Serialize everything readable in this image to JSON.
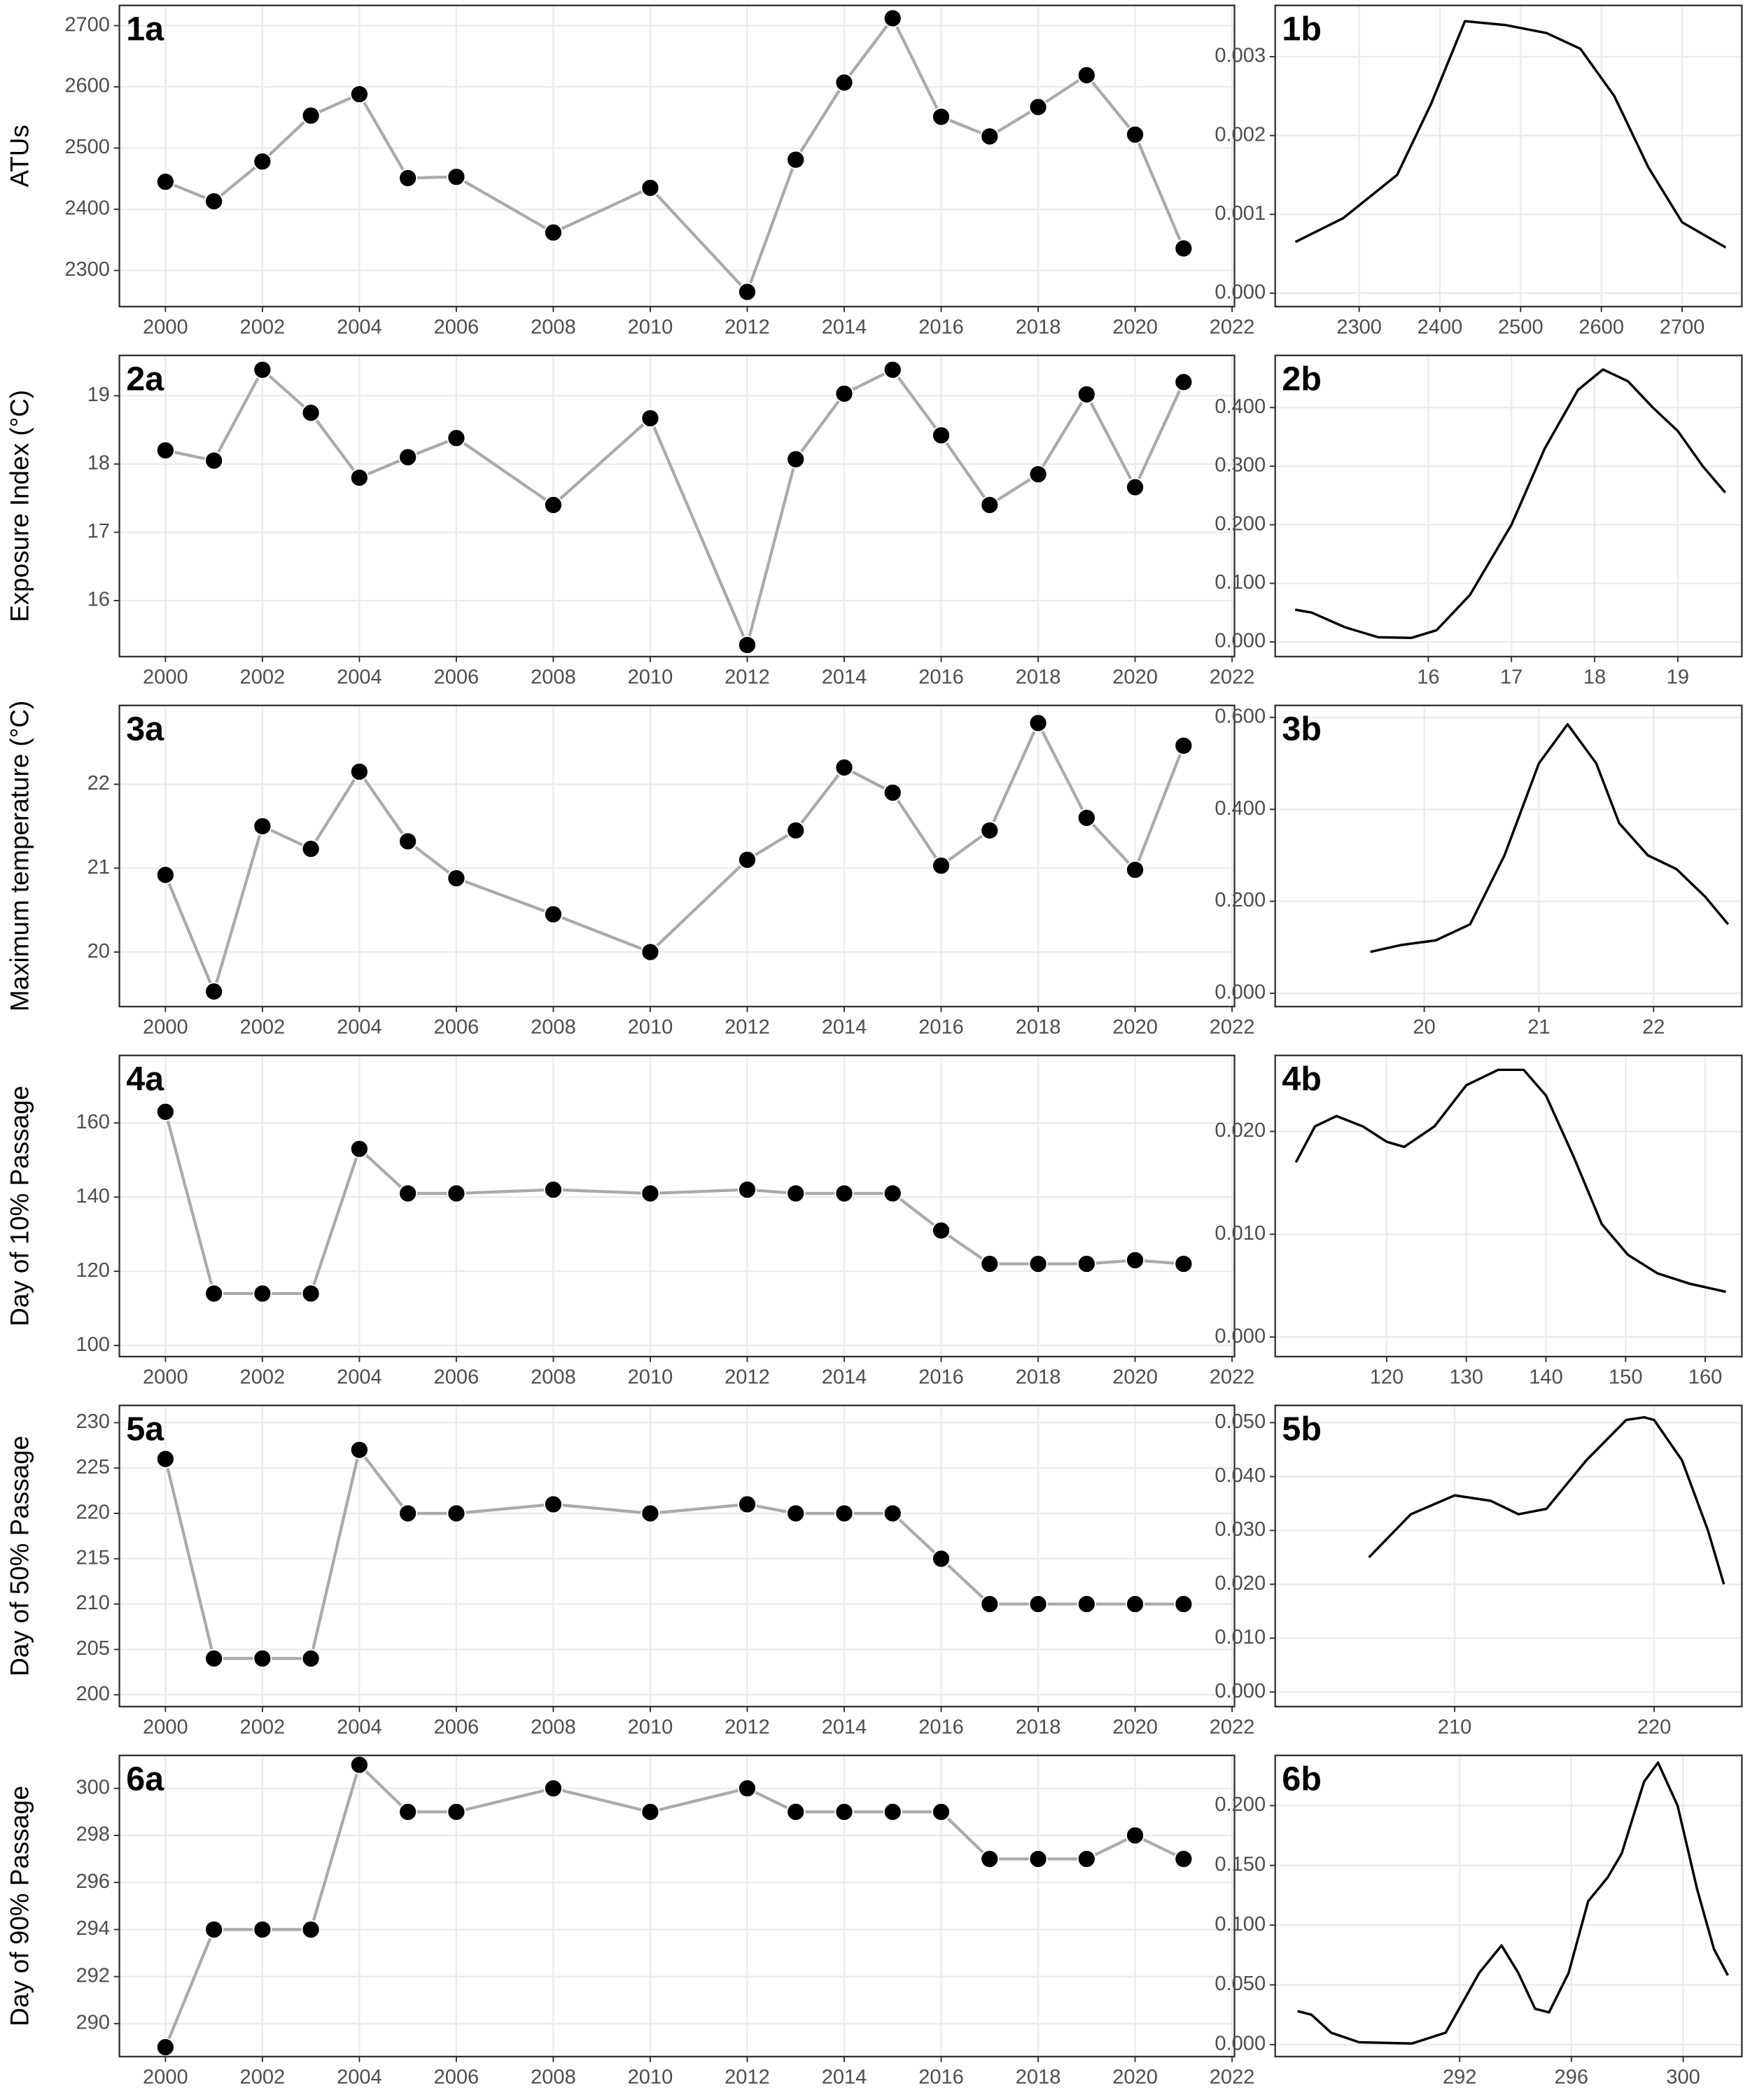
{
  "chart_data": [
    {
      "type": "line",
      "title": "1a",
      "y_label": "ATUs",
      "x": [
        2000,
        2001,
        2002,
        2003,
        2004,
        2005,
        2006,
        2008,
        2010,
        2012,
        2013,
        2014,
        2015,
        2016,
        2017,
        2018,
        2019,
        2020,
        2021
      ],
      "values": [
        2445,
        2413,
        2478,
        2553,
        2588,
        2451,
        2453,
        2362,
        2435,
        2265,
        2481,
        2607,
        2712,
        2551,
        2519,
        2567,
        2619,
        2522,
        2336
      ],
      "line_color": "#aaaaaa",
      "marker_color": "#000000",
      "xlim": [
        1999.05,
        2022.05
      ],
      "xticks": [
        2000,
        2002,
        2004,
        2006,
        2008,
        2010,
        2012,
        2014,
        2016,
        2018,
        2020,
        2022
      ],
      "ylim": [
        2241,
        2733
      ],
      "yticks": [
        2300,
        2400,
        2500,
        2600,
        2700
      ],
      "grid": true
    },
    {
      "type": "density",
      "title": "1b",
      "x": [
        2221,
        2280,
        2347,
        2389,
        2431,
        2482,
        2532,
        2574,
        2616,
        2658,
        2700,
        2754
      ],
      "values": [
        0.00065,
        0.00095,
        0.0015,
        0.0024,
        0.00345,
        0.0034,
        0.0033,
        0.0031,
        0.0025,
        0.0016,
        0.0009,
        0.00058
      ],
      "color": "#000000",
      "xlim": [
        2196,
        2774
      ],
      "xticks": [
        2300,
        2400,
        2500,
        2600,
        2700
      ],
      "ylim": [
        -0.00017,
        0.00365
      ],
      "yticks": [
        {
          "value": 0,
          "label": "0.000"
        },
        0.001,
        0.002,
        0.003
      ],
      "grid": true
    },
    {
      "type": "line",
      "title": "2a",
      "y_label": "Exposure Index (°C)",
      "x": [
        2000,
        2001,
        2002,
        2003,
        2004,
        2005,
        2006,
        2008,
        2010,
        2012,
        2013,
        2014,
        2015,
        2016,
        2017,
        2018,
        2019,
        2020,
        2021
      ],
      "values": [
        18.2,
        18.05,
        19.38,
        18.75,
        17.8,
        18.1,
        18.38,
        17.4,
        18.67,
        15.35,
        18.07,
        19.03,
        19.38,
        18.42,
        17.4,
        17.85,
        19.02,
        17.66,
        19.2
      ],
      "line_color": "#aaaaaa",
      "marker_color": "#000000",
      "xlim": [
        1999.05,
        2022.05
      ],
      "xticks": [
        2000,
        2002,
        2004,
        2006,
        2008,
        2010,
        2012,
        2014,
        2016,
        2018,
        2020,
        2022
      ],
      "ylim": [
        15.18,
        19.59
      ],
      "yticks": [
        16,
        17,
        18,
        19
      ],
      "grid": true
    },
    {
      "type": "density",
      "title": "2b",
      "x": [
        14.4,
        14.6,
        15.0,
        15.4,
        15.8,
        16.1,
        16.5,
        17.0,
        17.4,
        17.8,
        18.1,
        18.4,
        18.7,
        19.0,
        19.3,
        19.57
      ],
      "values": [
        0.055,
        0.05,
        0.025,
        0.008,
        0.007,
        0.02,
        0.08,
        0.2,
        0.33,
        0.43,
        0.465,
        0.445,
        0.4,
        0.36,
        0.3,
        0.255
      ],
      "color": "#000000",
      "xlim": [
        14.16,
        19.77
      ],
      "xticks": [
        16,
        17,
        18,
        19
      ],
      "ylim": [
        -0.025,
        0.489
      ],
      "yticks": [
        {
          "value": 0,
          "label": "0.000"
        },
        {
          "value": 0.1,
          "label": "0.100"
        },
        {
          "value": 0.2,
          "label": "0.200"
        },
        {
          "value": 0.3,
          "label": "0.300"
        },
        {
          "value": 0.4,
          "label": "0.400"
        }
      ],
      "grid": true
    },
    {
      "type": "line",
      "title": "3a",
      "y_label": "Maximum temperature (°C)",
      "x": [
        2000,
        2001,
        2002,
        2003,
        2004,
        2005,
        2006,
        2008,
        2010,
        2012,
        2013,
        2014,
        2015,
        2016,
        2017,
        2018,
        2019,
        2020,
        2021
      ],
      "values": [
        20.92,
        19.53,
        21.5,
        21.23,
        22.15,
        21.32,
        20.88,
        20.45,
        20.0,
        21.1,
        21.45,
        22.2,
        21.9,
        21.03,
        21.45,
        22.73,
        21.6,
        20.98,
        22.46
      ],
      "line_color": "#aaaaaa",
      "marker_color": "#000000",
      "xlim": [
        1999.05,
        2022.05
      ],
      "xticks": [
        2000,
        2002,
        2004,
        2006,
        2008,
        2010,
        2012,
        2014,
        2016,
        2018,
        2020,
        2022
      ],
      "ylim": [
        19.35,
        22.94
      ],
      "yticks": [
        20,
        21,
        22
      ],
      "grid": true
    },
    {
      "type": "density",
      "title": "3b",
      "x": [
        19.53,
        19.8,
        20.1,
        20.4,
        20.7,
        21.0,
        21.25,
        21.5,
        21.7,
        21.95,
        22.2,
        22.45,
        22.65
      ],
      "values": [
        0.09,
        0.105,
        0.115,
        0.15,
        0.3,
        0.5,
        0.585,
        0.5,
        0.37,
        0.3,
        0.27,
        0.21,
        0.15
      ],
      "color": "#000000",
      "xlim": [
        18.7,
        22.77
      ],
      "xticks": [
        20,
        21,
        22
      ],
      "ylim": [
        -0.029,
        0.626
      ],
      "yticks": [
        {
          "value": 0,
          "label": "0.000"
        },
        {
          "value": 0.2,
          "label": "0.200"
        },
        {
          "value": 0.4,
          "label": "0.400"
        },
        {
          "value": 0.6,
          "label": "0.600"
        }
      ],
      "grid": true
    },
    {
      "type": "line",
      "title": "4a",
      "y_label": "Day of 10% Passage",
      "x": [
        2000,
        2001,
        2002,
        2003,
        2004,
        2005,
        2006,
        2008,
        2010,
        2012,
        2013,
        2014,
        2015,
        2016,
        2017,
        2018,
        2019,
        2020,
        2021
      ],
      "values": [
        163,
        114,
        114,
        114,
        153,
        141,
        141,
        142,
        141,
        142,
        141,
        141,
        141,
        131,
        122,
        122,
        122,
        123,
        122
      ],
      "line_color": "#aaaaaa",
      "marker_color": "#000000",
      "xlim": [
        1999.05,
        2022.05
      ],
      "xticks": [
        2000,
        2002,
        2004,
        2006,
        2008,
        2010,
        2012,
        2014,
        2016,
        2018,
        2020,
        2022
      ],
      "ylim": [
        97,
        178.2
      ],
      "yticks": [
        100,
        120,
        140,
        160
      ],
      "grid": true
    },
    {
      "type": "density",
      "title": "4b",
      "x": [
        108.6,
        111,
        113.7,
        117,
        120,
        122.2,
        126,
        130,
        134,
        137.2,
        140,
        143.5,
        147,
        150.3,
        154,
        158,
        162.6
      ],
      "values": [
        0.017,
        0.0205,
        0.0215,
        0.0205,
        0.019,
        0.0185,
        0.0205,
        0.0245,
        0.026,
        0.026,
        0.0235,
        0.0175,
        0.011,
        0.008,
        0.0062,
        0.0052,
        0.0044
      ],
      "color": "#000000",
      "xlim": [
        106.0,
        164.6
      ],
      "xticks": [
        120,
        130,
        140,
        150,
        160
      ],
      "ylim": [
        -0.0019,
        0.0274
      ],
      "yticks": [
        {
          "value": 0,
          "label": "0.000"
        },
        {
          "value": 0.01,
          "label": "0.010"
        },
        {
          "value": 0.02,
          "label": "0.020"
        }
      ],
      "grid": true
    },
    {
      "type": "line",
      "title": "5a",
      "y_label": "Day of 50% Passage",
      "x": [
        2000,
        2001,
        2002,
        2003,
        2004,
        2005,
        2006,
        2008,
        2010,
        2012,
        2013,
        2014,
        2015,
        2016,
        2017,
        2018,
        2019,
        2020,
        2021
      ],
      "values": [
        226,
        204,
        204,
        204,
        227,
        220,
        220,
        221,
        220,
        221,
        220,
        220,
        220,
        215,
        210,
        210,
        210,
        210,
        210
      ],
      "line_color": "#aaaaaa",
      "marker_color": "#000000",
      "xlim": [
        1999.05,
        2022.05
      ],
      "xticks": [
        2000,
        2002,
        2004,
        2006,
        2008,
        2010,
        2012,
        2014,
        2016,
        2018,
        2020,
        2022
      ],
      "ylim": [
        198.7,
        231.9
      ],
      "yticks": [
        200,
        205,
        210,
        215,
        220,
        225,
        230
      ],
      "grid": true
    },
    {
      "type": "density",
      "title": "5b",
      "x": [
        205.7,
        207.8,
        210,
        211.8,
        213.2,
        214.6,
        216.6,
        218.6,
        219.5,
        220,
        221.4,
        222.7,
        223.5
      ],
      "values": [
        0.025,
        0.033,
        0.0365,
        0.0355,
        0.033,
        0.034,
        0.043,
        0.0505,
        0.051,
        0.0505,
        0.043,
        0.03,
        0.02
      ],
      "color": "#000000",
      "xlim": [
        201.0,
        224.4
      ],
      "xticks": [
        210,
        220
      ],
      "ylim": [
        -0.0027,
        0.0532
      ],
      "yticks": [
        {
          "value": 0,
          "label": "0.000"
        },
        {
          "value": 0.01,
          "label": "0.010"
        },
        {
          "value": 0.02,
          "label": "0.020"
        },
        {
          "value": 0.03,
          "label": "0.030"
        },
        {
          "value": 0.04,
          "label": "0.040"
        },
        {
          "value": 0.05,
          "label": "0.050"
        }
      ],
      "grid": true
    },
    {
      "type": "line",
      "title": "6a",
      "y_label": "Day of 90% Passage",
      "x": [
        2000,
        2001,
        2002,
        2003,
        2004,
        2005,
        2006,
        2008,
        2010,
        2012,
        2013,
        2014,
        2015,
        2016,
        2017,
        2018,
        2019,
        2020,
        2021
      ],
      "values": [
        289,
        294,
        294,
        294,
        301,
        299,
        299,
        300,
        299,
        300,
        299,
        299,
        299,
        299,
        297,
        297,
        297,
        298,
        297
      ],
      "line_color": "#aaaaaa",
      "marker_color": "#000000",
      "xlim": [
        1999.05,
        2022.05
      ],
      "xticks": [
        2000,
        2002,
        2004,
        2006,
        2008,
        2010,
        2012,
        2014,
        2016,
        2018,
        2020,
        2022
      ],
      "ylim": [
        288.6,
        301.4
      ],
      "yticks": [
        290,
        292,
        294,
        296,
        298,
        300
      ],
      "grid": true
    },
    {
      "type": "density",
      "title": "6b",
      "x": [
        286.2,
        286.7,
        287.4,
        288.4,
        290.3,
        291.5,
        292.7,
        293.5,
        294.1,
        294.7,
        295.2,
        295.9,
        296.6,
        297.3,
        297.8,
        298.6,
        299.1,
        299.8,
        300.5,
        301.1,
        301.6
      ],
      "values": [
        0.028,
        0.025,
        0.01,
        0.002,
        0.001,
        0.01,
        0.06,
        0.083,
        0.06,
        0.03,
        0.027,
        0.06,
        0.12,
        0.14,
        0.16,
        0.22,
        0.236,
        0.2,
        0.13,
        0.08,
        0.058
      ],
      "color": "#000000",
      "xlim": [
        285.4,
        302.1
      ],
      "xticks": [
        292,
        296,
        300
      ],
      "ylim": [
        -0.01,
        0.242
      ],
      "yticks": [
        {
          "value": 0,
          "label": "0.000"
        },
        {
          "value": 0.05,
          "label": "0.050"
        },
        {
          "value": 0.1,
          "label": "0.100"
        },
        {
          "value": 0.15,
          "label": "0.150"
        },
        {
          "value": 0.2,
          "label": "0.200"
        }
      ],
      "grid": true
    }
  ]
}
